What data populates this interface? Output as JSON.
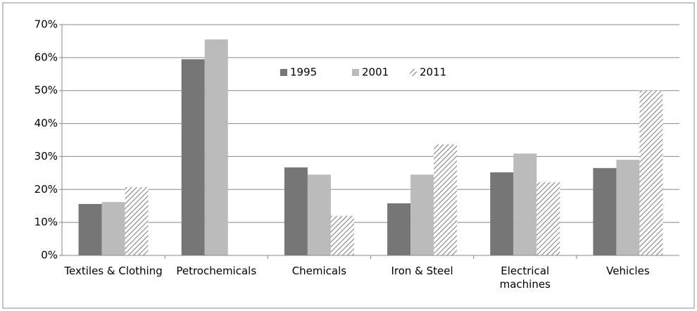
{
  "chart_data": {
    "type": "bar",
    "categories": [
      "Textiles & Clothing",
      "Petrochemicals",
      "Chemicals",
      "Iron & Steel",
      "Electrical machines",
      "Vehicles"
    ],
    "series": [
      {
        "name": "1995",
        "color": "#767676",
        "values": [
          15.6,
          59.5,
          26.7,
          15.8,
          25.2,
          26.5
        ]
      },
      {
        "name": "2001",
        "color": "#bbbbbb",
        "values": [
          16.2,
          65.5,
          24.5,
          24.5,
          30.9,
          29
        ]
      },
      {
        "name": "2011",
        "color": "#7a7a7a",
        "pattern": "diagonal",
        "values": [
          20.7,
          null,
          12,
          33.7,
          22.2,
          50
        ]
      }
    ],
    "ylim": [
      0,
      70
    ],
    "yticks": [
      {
        "value": 0,
        "label": "0%"
      },
      {
        "value": 10,
        "label": "10%"
      },
      {
        "value": 20,
        "label": "20%"
      },
      {
        "value": 30,
        "label": "30%"
      },
      {
        "value": 40,
        "label": "40%"
      },
      {
        "value": 50,
        "label": "50%"
      },
      {
        "value": 60,
        "label": "60%"
      },
      {
        "value": 70,
        "label": "70%"
      }
    ],
    "grid": true,
    "legend": "top"
  }
}
